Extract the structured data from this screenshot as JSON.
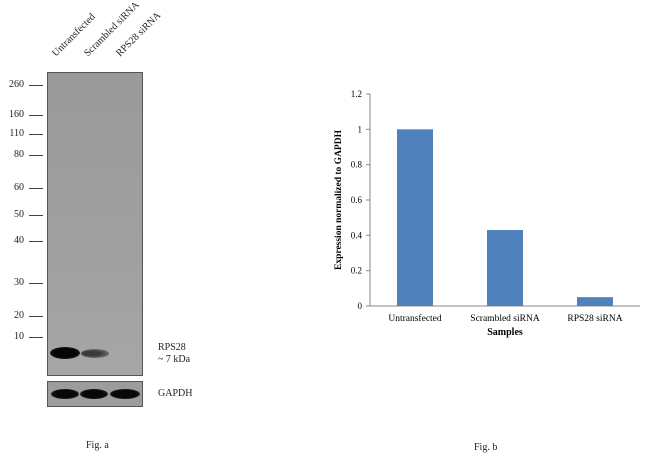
{
  "fig_a": {
    "lanes": [
      "Untransfected",
      "Scrambled siRNA",
      "RPS28 siRNA"
    ],
    "markers": [
      "260",
      "160",
      "110",
      "80",
      "60",
      "50",
      "40",
      "30",
      "20",
      "10"
    ],
    "band_label": "RPS28",
    "band_size": "~ 7 kDa",
    "loading_label": "GAPDH",
    "caption": "Fig. a"
  },
  "fig_b": {
    "caption": "Fig. b"
  },
  "chart_data": {
    "type": "bar",
    "categories": [
      "Untransfected",
      "Scrambled siRNA",
      "RPS28 siRNA"
    ],
    "values": [
      1.0,
      0.43,
      0.05
    ],
    "xlabel": "Samples",
    "ylabel": "Expression  normalized to GAPDH",
    "ylim": [
      0,
      1.2
    ],
    "yticks": [
      "0",
      "0.2",
      "0.4",
      "0.6",
      "0.8",
      "1",
      "1.2"
    ],
    "bar_color": "#4f81bd",
    "grid": false,
    "legend": "none"
  }
}
